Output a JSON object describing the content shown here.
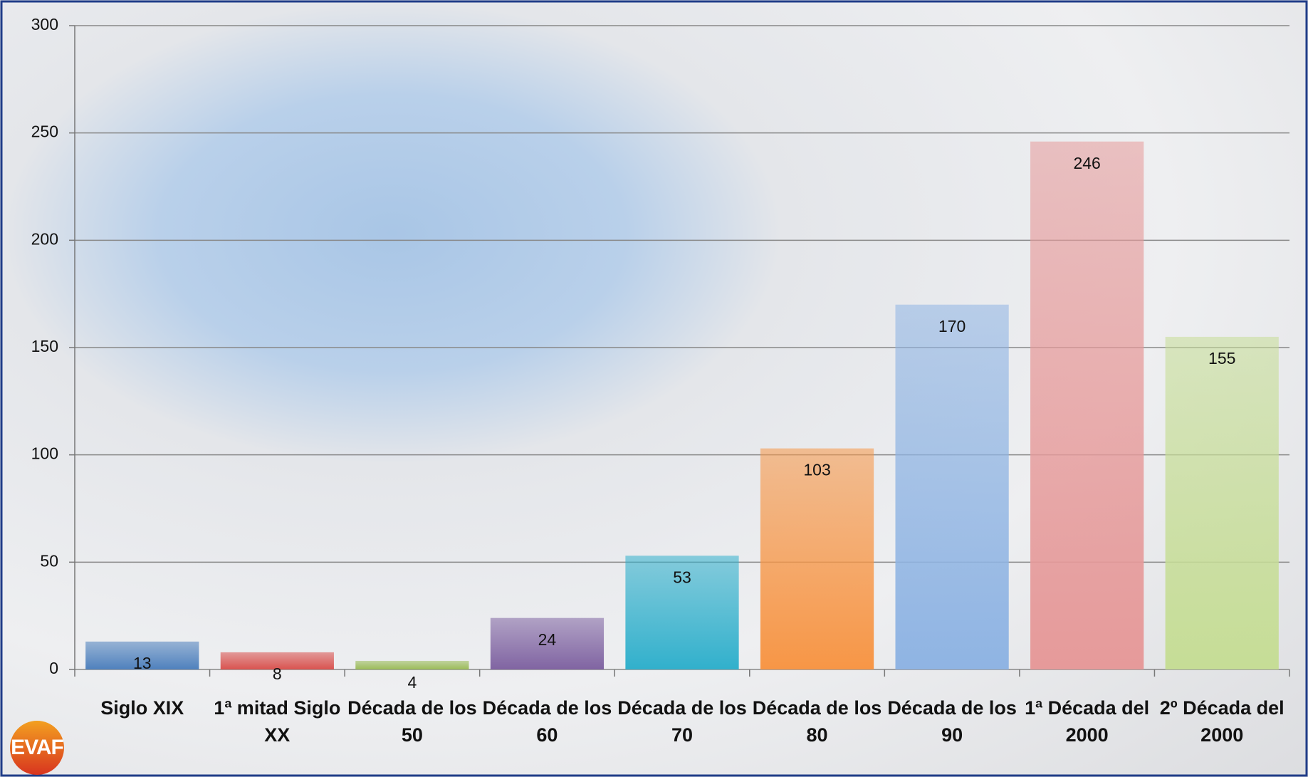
{
  "chart_data": {
    "type": "bar",
    "categories": [
      "Siglo XIX",
      "1ª mitad Siglo XX",
      "Década de los 50",
      "Década de los 60",
      "Década de los 70",
      "Década de los 80",
      "Década de los 90",
      "1ª Década del 2000",
      "2º Década del 2000"
    ],
    "values": [
      13,
      8,
      4,
      24,
      53,
      103,
      170,
      246,
      155
    ],
    "colors": [
      "#4f81bd",
      "#d9534f",
      "#9bbb59",
      "#8064a2",
      "#31b0cc",
      "#f79646",
      "#8fb4e3",
      "#e69a9a",
      "#c6dd96"
    ],
    "ylim": [
      0,
      300
    ],
    "yticks": [
      0,
      50,
      100,
      150,
      200,
      250,
      300
    ],
    "grid": true
  },
  "logo": "EVAF"
}
